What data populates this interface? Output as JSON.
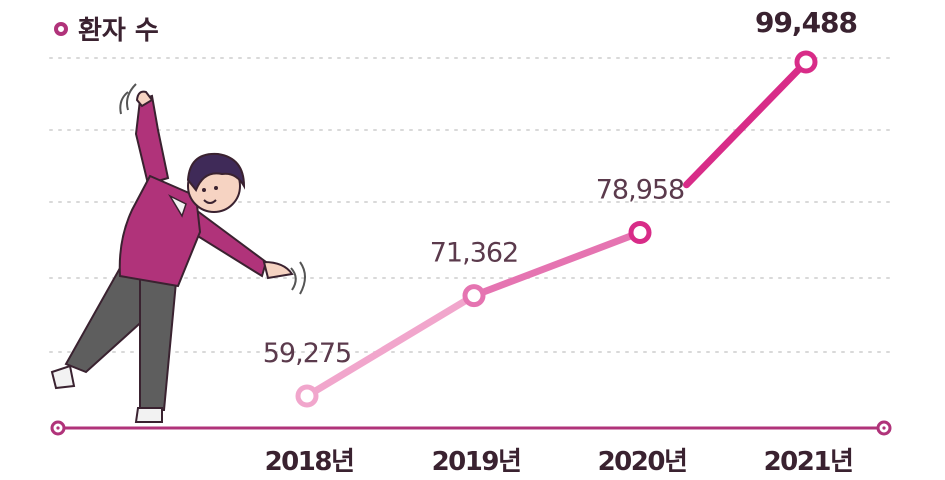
{
  "legend": {
    "label": "환자 수"
  },
  "colors": {
    "axis": "#b0337a",
    "grid": "#d9d9d9",
    "label": "#5b3a4c",
    "label_strong": "#3a2230",
    "segments": [
      "#f1a6cc",
      "#e574b1",
      "#d82c88"
    ],
    "point_fill": "#ffffff"
  },
  "chart_data": {
    "type": "line",
    "categories": [
      "2018년",
      "2019년",
      "2020년",
      "2021년"
    ],
    "series": [
      {
        "name": "환자 수",
        "values": [
          59275,
          71362,
          78958,
          99488
        ]
      }
    ],
    "data_labels": [
      "59,275",
      "71,362",
      "78,958",
      "99,488"
    ],
    "grid": true
  },
  "illustration": {
    "icon": "dancing-person-illustration"
  }
}
